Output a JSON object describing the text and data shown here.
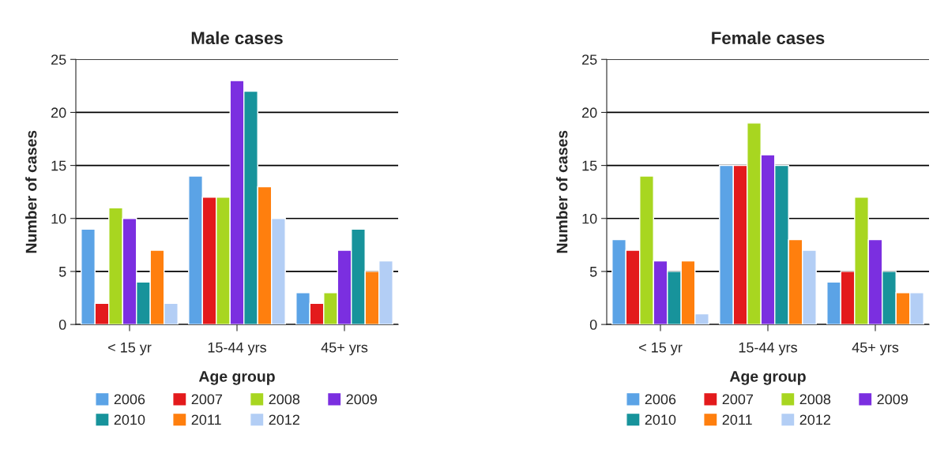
{
  "chart_data": [
    {
      "type": "bar",
      "title": "Male cases",
      "xlabel": "Age group",
      "ylabel": "Number of cases",
      "categories": [
        "< 15 yr",
        "15-44 yrs",
        "45+ yrs"
      ],
      "ylim": [
        0,
        25
      ],
      "yticks": [
        0,
        5,
        10,
        15,
        20,
        25
      ],
      "grid": "y",
      "legend": "bottom",
      "series": [
        {
          "name": "2006",
          "color": "#5ba3e6",
          "values": [
            9,
            14,
            3
          ]
        },
        {
          "name": "2007",
          "color": "#e31a1c",
          "values": [
            2,
            12,
            2
          ]
        },
        {
          "name": "2008",
          "color": "#a8d620",
          "values": [
            11,
            12,
            3
          ]
        },
        {
          "name": "2009",
          "color": "#7b2fe0",
          "values": [
            10,
            23,
            7
          ]
        },
        {
          "name": "2010",
          "color": "#17939b",
          "values": [
            4,
            22,
            9
          ]
        },
        {
          "name": "2011",
          "color": "#ff7f0e",
          "values": [
            7,
            13,
            5
          ]
        },
        {
          "name": "2012",
          "color": "#b3cef5",
          "values": [
            2,
            10,
            6
          ]
        }
      ]
    },
    {
      "type": "bar",
      "title": "Female cases",
      "xlabel": "Age group",
      "ylabel": "Number of cases",
      "categories": [
        "< 15 yr",
        "15-44 yrs",
        "45+ yrs"
      ],
      "ylim": [
        0,
        25
      ],
      "yticks": [
        0,
        5,
        10,
        15,
        20,
        25
      ],
      "grid": "y",
      "legend": "bottom",
      "series": [
        {
          "name": "2006",
          "color": "#5ba3e6",
          "values": [
            8,
            15,
            4
          ]
        },
        {
          "name": "2007",
          "color": "#e31a1c",
          "values": [
            7,
            15,
            5
          ]
        },
        {
          "name": "2008",
          "color": "#a8d620",
          "values": [
            14,
            19,
            12
          ]
        },
        {
          "name": "2009",
          "color": "#7b2fe0",
          "values": [
            6,
            16,
            8
          ]
        },
        {
          "name": "2010",
          "color": "#17939b",
          "values": [
            5,
            15,
            5
          ]
        },
        {
          "name": "2011",
          "color": "#ff7f0e",
          "values": [
            6,
            8,
            3
          ]
        },
        {
          "name": "2012",
          "color": "#b3cef5",
          "values": [
            1,
            7,
            3
          ]
        }
      ]
    }
  ]
}
